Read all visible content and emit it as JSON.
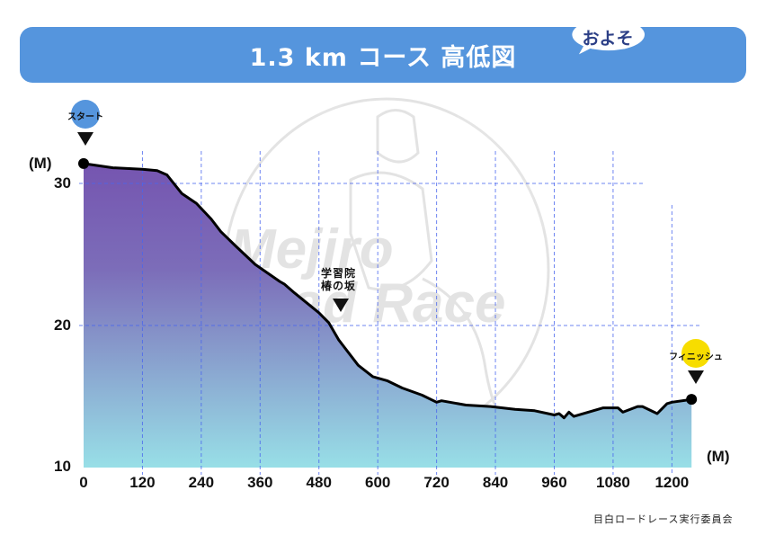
{
  "header": {
    "title": "1.3 km コース 高低図",
    "bubble": "およそ",
    "banner_color": "#5595dd",
    "bubble_text_color": "#2c3f86"
  },
  "markers": {
    "start": {
      "label": "スタート",
      "color": "#5595dd"
    },
    "finish": {
      "label": "フィニッシュ",
      "color": "#f7dd00"
    },
    "landmark": {
      "line1": "学習院",
      "line2": "椿の坂"
    }
  },
  "axes": {
    "y_unit": "(M)",
    "x_unit": "(M)",
    "y_ticks": [
      "30",
      "20",
      "10"
    ],
    "x_ticks": [
      "0",
      "120",
      "240",
      "360",
      "480",
      "600",
      "720",
      "840",
      "960",
      "1080",
      "1200"
    ]
  },
  "watermark": {
    "line1": "Mejiro",
    "line2": "Road Race"
  },
  "footer": {
    "credit": "目白ロードレース実行委員会"
  },
  "colors": {
    "fill_top": "#7555b0",
    "fill_bottom": "#98dfe7",
    "grid": "#4a66ee",
    "line": "#000000"
  },
  "chart_data": {
    "type": "area",
    "title": "1.3 km コース 高低図",
    "xlabel": "(M)",
    "ylabel": "(M)",
    "xlim": [
      0,
      1250
    ],
    "ylim": [
      10,
      32
    ],
    "grid": true,
    "x": [
      0,
      60,
      120,
      150,
      170,
      200,
      230,
      260,
      280,
      310,
      350,
      400,
      410,
      430,
      480,
      500,
      520,
      560,
      590,
      620,
      650,
      690,
      720,
      730,
      780,
      830,
      880,
      920,
      960,
      970,
      980,
      990,
      1000,
      1060,
      1090,
      1100,
      1130,
      1140,
      1170,
      1190,
      1200,
      1240
    ],
    "y": [
      31.4,
      31.1,
      31.0,
      30.9,
      30.6,
      29.3,
      28.6,
      27.5,
      26.6,
      25.6,
      24.3,
      23.1,
      22.9,
      22.3,
      20.9,
      20.2,
      19.0,
      17.2,
      16.4,
      16.1,
      15.6,
      15.1,
      14.6,
      14.7,
      14.4,
      14.3,
      14.1,
      14.0,
      13.7,
      13.8,
      13.5,
      13.9,
      13.6,
      14.2,
      14.2,
      13.9,
      14.3,
      14.3,
      13.8,
      14.5,
      14.6,
      14.8
    ],
    "annotations": [
      {
        "x": 0,
        "label": "スタート"
      },
      {
        "x": 520,
        "label": "学習院椿の坂"
      },
      {
        "x": 1240,
        "label": "フィニッシュ"
      }
    ]
  }
}
